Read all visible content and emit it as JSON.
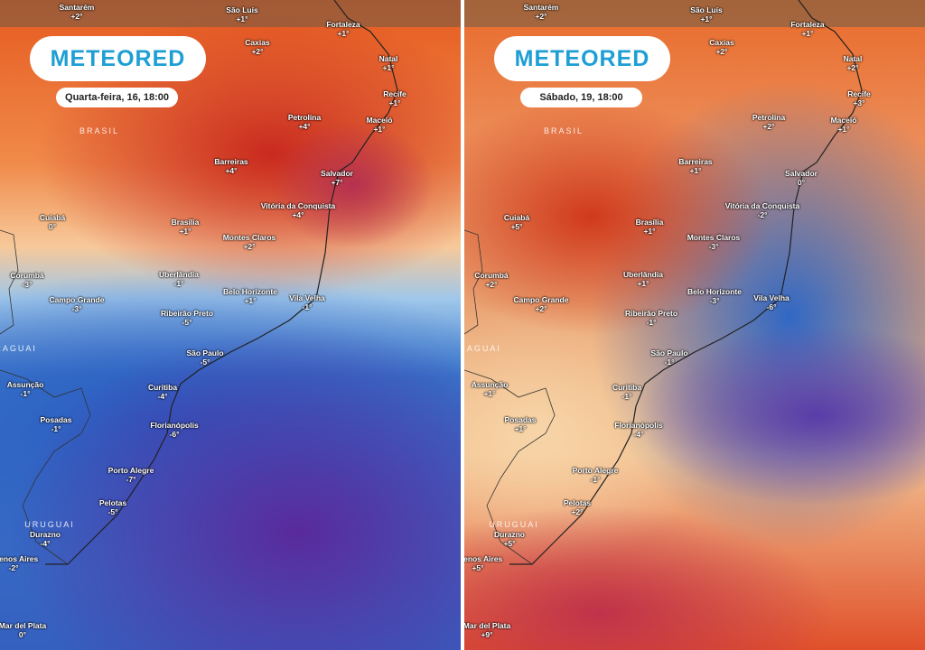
{
  "logo": "METEORED",
  "countries": [
    "BRASIL",
    "PARAGUAI",
    "URUGUAI"
  ],
  "cities": [
    "Santarém",
    "São Luís",
    "Fortaleza",
    "Caxias",
    "Natal",
    "Recife",
    "Maceió",
    "Petrolina",
    "Barreiras",
    "Salvador",
    "Vitória da Conquista",
    "Cuiabá",
    "Brasília",
    "Montes Claros",
    "Corumbá",
    "Uberlândia",
    "Campo Grande",
    "Belo Horizonte",
    "Vila Velha",
    "Ribeirão Preto",
    "São Paulo",
    "Assunção",
    "Curitiba",
    "Posadas",
    "Florianópolis",
    "Porto Alegre",
    "Pelotas",
    "Durazno",
    "Buenos Aires",
    "Mar del Plata"
  ],
  "panels": [
    {
      "date": "Quarta-feira, 16, 18:00",
      "temps": [
        "+2°",
        "+1°",
        "+1°",
        "+2°",
        "+1°",
        "+1°",
        "+1°",
        "+4°",
        "+4°",
        "+7°",
        "+4°",
        "0°",
        "+1°",
        "+2°",
        "-3°",
        "-1°",
        "-3°",
        "+1°",
        "-1°",
        "-5°",
        "-5°",
        "-1°",
        "-4°",
        "-1°",
        "-6°",
        "-7°",
        "-5°",
        "-4°",
        "-2°",
        "0°"
      ]
    },
    {
      "date": "Sábado, 19, 18:00",
      "temps": [
        "+2°",
        "+1°",
        "+1°",
        "+2°",
        "+2°",
        "+3°",
        "+1°",
        "+2°",
        "+1°",
        "0°",
        "-2°",
        "+5°",
        "+1°",
        "-3°",
        "+2°",
        "+1°",
        "+2°",
        "-3°",
        "-6°",
        "-1°",
        "-1°",
        "+1°",
        "-1°",
        "+1°",
        "-4°",
        "-1°",
        "+2°",
        "+5°",
        "+5°",
        "+9°"
      ]
    }
  ]
}
